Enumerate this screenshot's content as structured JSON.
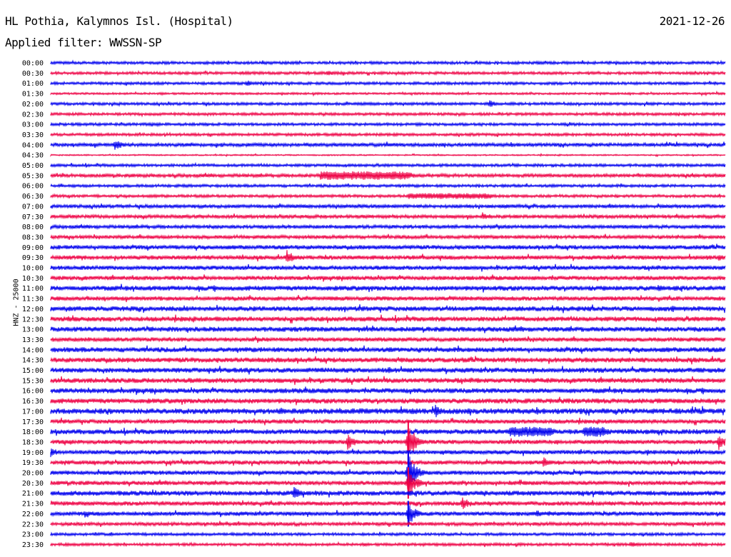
{
  "header": {
    "station": "HL Pothia, Kalymnos Isl. (Hospital)",
    "date": "2021-12-26",
    "filter": "Applied filter: WWSSN-SP"
  },
  "chart_data": {
    "type": "line",
    "ylabel": "HNZ - 25000",
    "colors": [
      "#0000ee",
      "#ee0044"
    ],
    "rows": [
      "00:00",
      "00:30",
      "01:00",
      "01:30",
      "02:00",
      "02:30",
      "03:00",
      "03:30",
      "04:00",
      "04:30",
      "05:00",
      "05:30",
      "06:00",
      "06:30",
      "07:00",
      "07:30",
      "08:00",
      "08:30",
      "09:00",
      "09:30",
      "10:00",
      "10:30",
      "11:00",
      "11:30",
      "12:00",
      "12:30",
      "13:00",
      "13:30",
      "14:00",
      "14:30",
      "15:00",
      "15:30",
      "16:00",
      "16:30",
      "17:00",
      "17:30",
      "18:00",
      "18:30",
      "19:00",
      "19:30",
      "20:00",
      "20:30",
      "21:00",
      "21:30",
      "22:00",
      "22:30",
      "23:00",
      "23:30"
    ],
    "noise_level": [
      2,
      2,
      2,
      1.5,
      2,
      2,
      2,
      2,
      2.5,
      1,
      2,
      2.5,
      2,
      2,
      2.5,
      2.5,
      2.5,
      2.5,
      3,
      3,
      3,
      3,
      3.5,
      3,
      3.5,
      3.5,
      3.5,
      3,
      3.5,
      3.5,
      3.5,
      3.5,
      3.5,
      3.5,
      4,
      3,
      3.5,
      3,
      3,
      3,
      3,
      3,
      3.5,
      3,
      3,
      2.5,
      2,
      2
    ],
    "events": [
      {
        "row": "00:30",
        "t": 0.41,
        "amp": 5
      },
      {
        "row": "01:00",
        "t": 0.29,
        "amp": 5
      },
      {
        "row": "02:00",
        "t": 0.65,
        "amp": 6
      },
      {
        "row": "04:00",
        "t": 0.095,
        "amp": 9
      },
      {
        "row": "05:30",
        "t": 0.4,
        "amp": 6,
        "dur": 0.13
      },
      {
        "row": "06:30",
        "t": 0.53,
        "amp": 4,
        "dur": 0.12
      },
      {
        "row": "07:30",
        "t": 0.64,
        "amp": 6
      },
      {
        "row": "09:30",
        "t": 0.35,
        "amp": 11
      },
      {
        "row": "09:30",
        "t": 0.99,
        "amp": 6
      },
      {
        "row": "11:00",
        "t": 0.9,
        "amp": 6
      },
      {
        "row": "12:00",
        "t": 0.92,
        "amp": 6
      },
      {
        "row": "15:00",
        "t": 0.5,
        "amp": 6
      },
      {
        "row": "17:00",
        "t": 0.57,
        "amp": 10
      },
      {
        "row": "18:00",
        "t": 0.68,
        "amp": 7,
        "dur": 0.06
      },
      {
        "row": "18:00",
        "t": 0.79,
        "amp": 7,
        "dur": 0.03
      },
      {
        "row": "18:30",
        "t": 0.44,
        "amp": 12
      },
      {
        "row": "18:30",
        "t": 0.99,
        "amp": 12
      },
      {
        "row": "18:30",
        "t": 0.53,
        "amp": 30
      },
      {
        "row": "19:00",
        "t": 0.0,
        "amp": 8
      },
      {
        "row": "19:30",
        "t": 0.73,
        "amp": 8
      },
      {
        "row": "20:00",
        "t": 0.53,
        "amp": 30
      },
      {
        "row": "20:30",
        "t": 0.53,
        "amp": 22
      },
      {
        "row": "21:00",
        "t": 0.36,
        "amp": 10
      },
      {
        "row": "21:30",
        "t": 0.61,
        "amp": 10
      },
      {
        "row": "22:00",
        "t": 0.05,
        "amp": 6
      },
      {
        "row": "22:00",
        "t": 0.72,
        "amp": 6
      },
      {
        "row": "22:00",
        "t": 0.53,
        "amp": 18
      },
      {
        "row": "23:30",
        "t": 0.86,
        "amp": 5
      }
    ]
  }
}
